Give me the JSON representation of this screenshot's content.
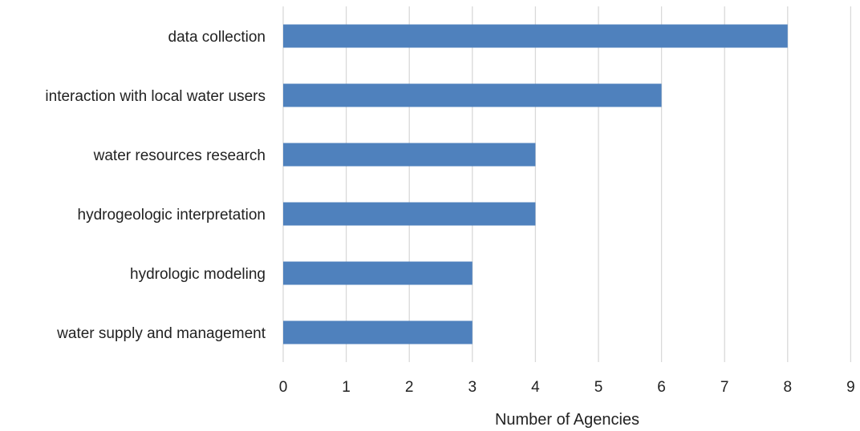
{
  "chart_data": {
    "type": "bar",
    "orientation": "horizontal",
    "title": "",
    "xlabel": "Number of Agencies",
    "ylabel": "",
    "categories": [
      "data collection",
      "interaction with local water users",
      "water resources research",
      "hydrogeologic interpretation",
      "hydrologic modeling",
      "water supply and management"
    ],
    "values": [
      8,
      6,
      4,
      4,
      3,
      3
    ],
    "xlim": [
      0,
      9
    ],
    "xticks": [
      "0",
      "1",
      "2",
      "3",
      "4",
      "5",
      "6",
      "7",
      "8",
      "9"
    ],
    "grid": "vertical",
    "legend": "none",
    "bar_color": "#4f81bd"
  }
}
